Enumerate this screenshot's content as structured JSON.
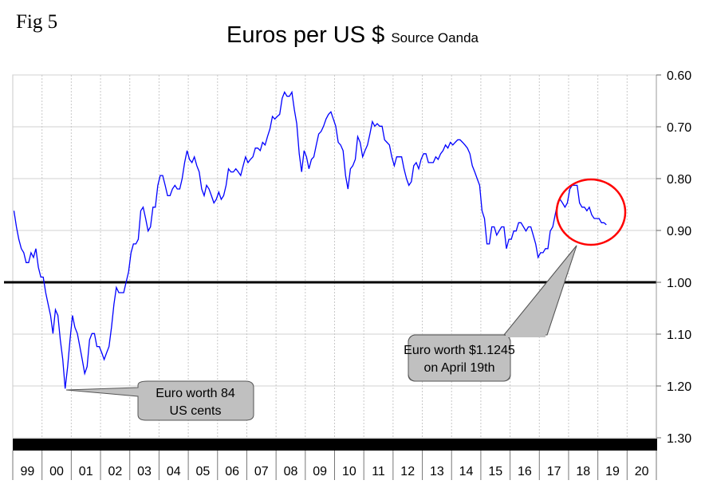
{
  "figure_label": "Fig 5",
  "chart_data": {
    "type": "line",
    "title": "Euros per US $",
    "subtitle": "Source Oanda",
    "xlabel": "",
    "ylabel": "",
    "y_inverted": true,
    "ylim": [
      0.6,
      1.3
    ],
    "y_axis_side": "right",
    "y_ticks": [
      "0.60",
      "0.70",
      "0.80",
      "0.90",
      "1.00",
      "1.10",
      "1.20",
      "1.30"
    ],
    "x_ticks": [
      "99",
      "00",
      "01",
      "02",
      "03",
      "04",
      "05",
      "06",
      "07",
      "08",
      "09",
      "10",
      "11",
      "12",
      "13",
      "14",
      "15",
      "16",
      "17",
      "18",
      "19",
      "20"
    ],
    "xlim": [
      "1999-01",
      "2020-12"
    ],
    "grid": true,
    "reference_line": {
      "y": 1.0,
      "color": "#000000"
    },
    "series_color": "#0000ff",
    "series": [
      {
        "start": "1999-01",
        "frequency": "monthly",
        "values": [
          0.862,
          0.893,
          0.917,
          0.935,
          0.943,
          0.962,
          0.962,
          0.943,
          0.952,
          0.935,
          0.971,
          0.99,
          0.99,
          1.02,
          1.042,
          1.064,
          1.099,
          1.053,
          1.064,
          1.111,
          1.149,
          1.205,
          1.163,
          1.111,
          1.064,
          1.087,
          1.099,
          1.124,
          1.149,
          1.176,
          1.163,
          1.111,
          1.099,
          1.099,
          1.124,
          1.124,
          1.136,
          1.149,
          1.136,
          1.124,
          1.087,
          1.042,
          1.01,
          1.02,
          1.02,
          1.02,
          1.0,
          0.98,
          0.943,
          0.926,
          0.926,
          0.917,
          0.862,
          0.855,
          0.877,
          0.901,
          0.893,
          0.855,
          0.855,
          0.813,
          0.794,
          0.794,
          0.813,
          0.833,
          0.833,
          0.82,
          0.813,
          0.82,
          0.82,
          0.8,
          0.769,
          0.746,
          0.763,
          0.769,
          0.758,
          0.775,
          0.787,
          0.82,
          0.833,
          0.813,
          0.82,
          0.833,
          0.847,
          0.84,
          0.826,
          0.84,
          0.833,
          0.813,
          0.781,
          0.787,
          0.787,
          0.781,
          0.787,
          0.794,
          0.775,
          0.758,
          0.769,
          0.763,
          0.758,
          0.741,
          0.741,
          0.746,
          0.73,
          0.735,
          0.719,
          0.704,
          0.68,
          0.685,
          0.68,
          0.676,
          0.645,
          0.633,
          0.641,
          0.641,
          0.633,
          0.667,
          0.694,
          0.752,
          0.787,
          0.746,
          0.758,
          0.781,
          0.763,
          0.758,
          0.735,
          0.714,
          0.709,
          0.699,
          0.685,
          0.676,
          0.671,
          0.685,
          0.699,
          0.73,
          0.735,
          0.746,
          0.794,
          0.82,
          0.781,
          0.775,
          0.763,
          0.719,
          0.73,
          0.758,
          0.746,
          0.735,
          0.714,
          0.69,
          0.699,
          0.694,
          0.699,
          0.699,
          0.725,
          0.73,
          0.735,
          0.758,
          0.775,
          0.758,
          0.758,
          0.758,
          0.781,
          0.8,
          0.813,
          0.806,
          0.775,
          0.769,
          0.781,
          0.763,
          0.752,
          0.752,
          0.769,
          0.769,
          0.769,
          0.758,
          0.763,
          0.752,
          0.746,
          0.735,
          0.741,
          0.73,
          0.735,
          0.73,
          0.725,
          0.725,
          0.73,
          0.735,
          0.741,
          0.752,
          0.775,
          0.787,
          0.8,
          0.813,
          0.862,
          0.877,
          0.926,
          0.926,
          0.893,
          0.893,
          0.909,
          0.901,
          0.893,
          0.893,
          0.935,
          0.917,
          0.917,
          0.901,
          0.901,
          0.885,
          0.885,
          0.893,
          0.901,
          0.893,
          0.893,
          0.909,
          0.926,
          0.952,
          0.943,
          0.943,
          0.935,
          0.935,
          0.901,
          0.893,
          0.87,
          0.847,
          0.84,
          0.847,
          0.855,
          0.847,
          0.82,
          0.813,
          0.813,
          0.813,
          0.847,
          0.855,
          0.855,
          0.862,
          0.855,
          0.87,
          0.877,
          0.877,
          0.877,
          0.885,
          0.885,
          0.889
        ]
      }
    ],
    "annotations": [
      {
        "text_lines": [
          "Euro worth 84",
          "US cents"
        ],
        "points_to": {
          "x": "2000-10",
          "y": 1.205
        }
      },
      {
        "text_lines": [
          "Euro worth $1.1245",
          "on April 19th"
        ],
        "points_to": {
          "x": "2018-07",
          "y": 0.88
        },
        "highlight": "circle",
        "highlight_color": "#ff0000"
      }
    ]
  }
}
